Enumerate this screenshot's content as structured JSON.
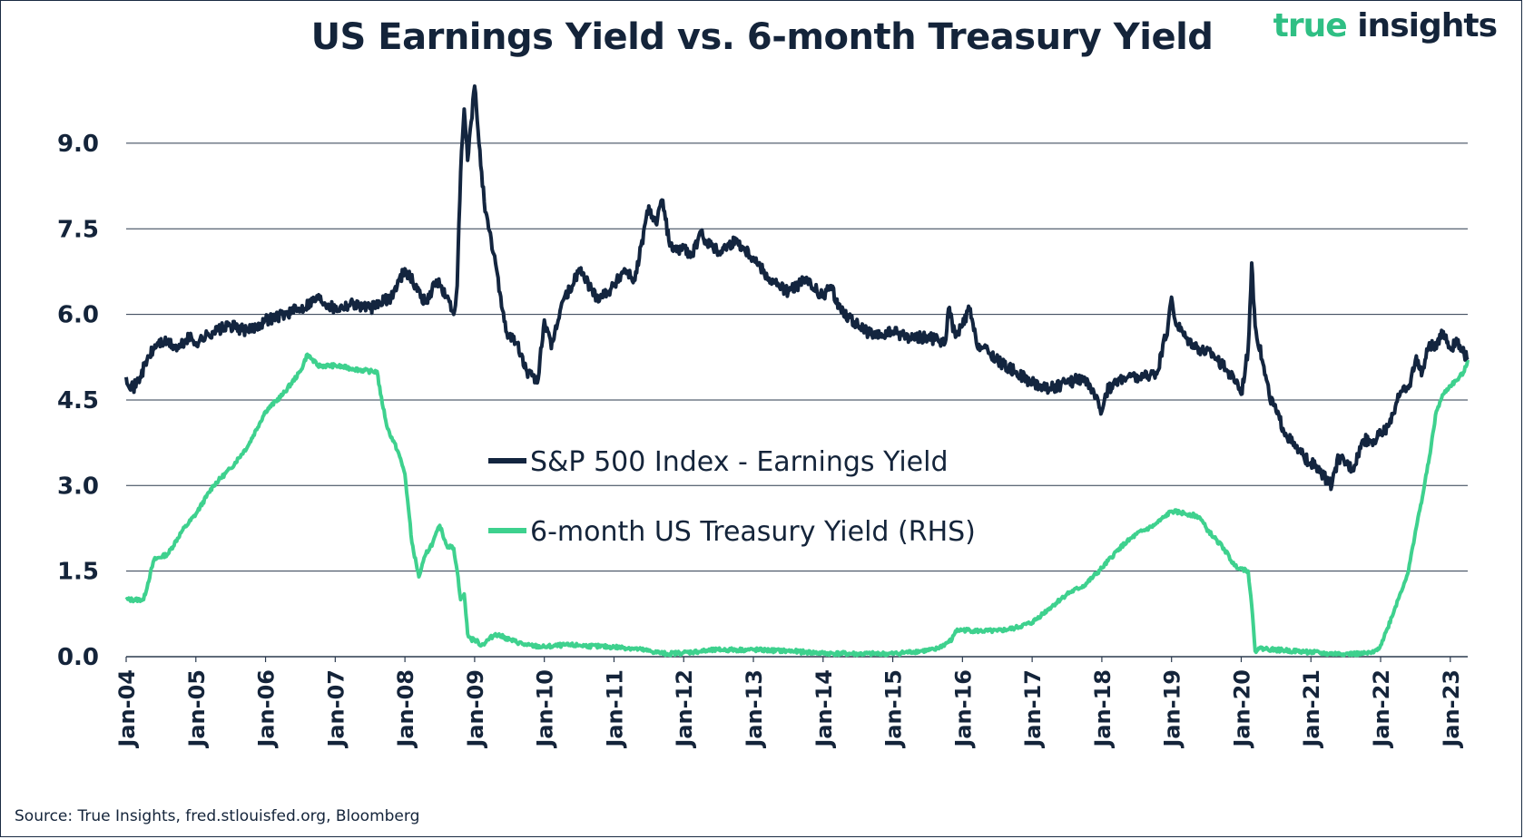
{
  "header": {
    "title": "US Earnings Yield vs. 6-month Treasury Yield",
    "brand_word1": "true",
    "brand_word2": "insights"
  },
  "footer": {
    "source": "Source: True Insights, fred.stlouisfed.org, Bloomberg"
  },
  "colors": {
    "earnings": "#13253f",
    "treasury": "#3ed18e",
    "grid": "#2b3a4e"
  },
  "chart_data": {
    "type": "line",
    "title": "US Earnings Yield vs. 6-month Treasury Yield",
    "xlabel": "",
    "ylabel": "",
    "x_range": [
      2004.0,
      2023.25
    ],
    "ylim": [
      0,
      10
    ],
    "yticks": [
      0.0,
      1.5,
      3.0,
      4.5,
      6.0,
      7.5,
      9.0
    ],
    "ytick_labels": [
      "0.0",
      "1.5",
      "3.0",
      "4.5",
      "6.0",
      "7.5",
      "9.0"
    ],
    "xticks": [
      2004,
      2005,
      2006,
      2007,
      2008,
      2009,
      2010,
      2011,
      2012,
      2013,
      2014,
      2015,
      2016,
      2017,
      2018,
      2019,
      2020,
      2021,
      2022,
      2023
    ],
    "xtick_labels": [
      "Jan-04",
      "Jan-05",
      "Jan-06",
      "Jan-07",
      "Jan-08",
      "Jan-09",
      "Jan-10",
      "Jan-11",
      "Jan-12",
      "Jan-13",
      "Jan-14",
      "Jan-15",
      "Jan-16",
      "Jan-17",
      "Jan-18",
      "Jan-19",
      "Jan-20",
      "Jan-21",
      "Jan-22",
      "Jan-23"
    ],
    "grid": true,
    "legend_position": "center",
    "series": [
      {
        "name": "S&P 500 Index - Earnings Yield",
        "color": "#13253f",
        "x": [
          2004.0,
          2004.1,
          2004.2,
          2004.3,
          2004.45,
          2004.6,
          2004.75,
          2004.9,
          2005.0,
          2005.25,
          2005.5,
          2005.75,
          2006.0,
          2006.25,
          2006.5,
          2006.75,
          2007.0,
          2007.25,
          2007.5,
          2007.65,
          2007.8,
          2008.0,
          2008.15,
          2008.3,
          2008.45,
          2008.6,
          2008.7,
          2008.75,
          2008.8,
          2008.85,
          2008.9,
          2009.0,
          2009.1,
          2009.15,
          2009.2,
          2009.3,
          2009.45,
          2009.6,
          2009.75,
          2009.9,
          2010.0,
          2010.1,
          2010.25,
          2010.4,
          2010.5,
          2010.6,
          2010.75,
          2010.9,
          2011.0,
          2011.15,
          2011.3,
          2011.5,
          2011.6,
          2011.7,
          2011.8,
          2011.9,
          2012.0,
          2012.1,
          2012.25,
          2012.4,
          2012.5,
          2012.75,
          2013.0,
          2013.25,
          2013.5,
          2013.75,
          2014.0,
          2014.1,
          2014.25,
          2014.5,
          2014.75,
          2015.0,
          2015.25,
          2015.5,
          2015.75,
          2015.8,
          2015.9,
          2016.0,
          2016.1,
          2016.2,
          2016.4,
          2016.6,
          2016.75,
          2017.0,
          2017.25,
          2017.5,
          2017.75,
          2018.0,
          2018.05,
          2018.1,
          2018.3,
          2018.6,
          2018.8,
          2018.95,
          2019.0,
          2019.05,
          2019.2,
          2019.4,
          2019.6,
          2019.8,
          2019.95,
          2020.0,
          2020.1,
          2020.15,
          2020.2,
          2020.3,
          2020.4,
          2020.5,
          2020.6,
          2020.75,
          2020.9,
          2021.0,
          2021.15,
          2021.3,
          2021.4,
          2021.5,
          2021.6,
          2021.75,
          2021.9,
          2022.0,
          2022.15,
          2022.25,
          2022.4,
          2022.5,
          2022.6,
          2022.7,
          2022.8,
          2022.9,
          2023.0,
          2023.1,
          2023.2,
          2023.25
        ],
        "values": [
          4.9,
          4.7,
          4.9,
          5.2,
          5.5,
          5.5,
          5.4,
          5.6,
          5.5,
          5.7,
          5.8,
          5.7,
          5.9,
          6.0,
          6.1,
          6.3,
          6.1,
          6.2,
          6.1,
          6.2,
          6.3,
          6.8,
          6.5,
          6.2,
          6.6,
          6.3,
          6.0,
          6.5,
          8.5,
          9.6,
          8.7,
          10.0,
          8.5,
          7.8,
          7.5,
          6.9,
          5.7,
          5.5,
          5.0,
          4.8,
          5.9,
          5.4,
          6.2,
          6.5,
          6.8,
          6.6,
          6.3,
          6.4,
          6.5,
          6.8,
          6.6,
          7.9,
          7.6,
          8.0,
          7.2,
          7.1,
          7.2,
          7.0,
          7.4,
          7.2,
          7.1,
          7.3,
          7.0,
          6.6,
          6.4,
          6.6,
          6.3,
          6.5,
          6.1,
          5.8,
          5.6,
          5.7,
          5.6,
          5.6,
          5.5,
          6.1,
          5.6,
          5.8,
          6.1,
          5.5,
          5.3,
          5.1,
          5.0,
          4.8,
          4.7,
          4.8,
          4.9,
          4.3,
          4.6,
          4.7,
          4.9,
          4.9,
          5.0,
          5.8,
          6.3,
          5.9,
          5.6,
          5.4,
          5.3,
          5.0,
          4.8,
          4.6,
          5.4,
          6.9,
          5.8,
          5.2,
          4.6,
          4.3,
          4.0,
          3.7,
          3.5,
          3.4,
          3.2,
          3.0,
          3.5,
          3.4,
          3.3,
          3.8,
          3.8,
          3.9,
          4.1,
          4.6,
          4.7,
          5.2,
          5.0,
          5.5,
          5.4,
          5.7,
          5.4,
          5.5,
          5.3,
          5.25
        ],
        "noise": 0.1
      },
      {
        "name": "6-month US Treasury Yield (RHS)",
        "color": "#3ed18e",
        "x": [
          2004.0,
          2004.25,
          2004.4,
          2004.6,
          2004.8,
          2005.0,
          2005.25,
          2005.5,
          2005.75,
          2006.0,
          2006.25,
          2006.5,
          2006.6,
          2006.75,
          2007.0,
          2007.25,
          2007.5,
          2007.6,
          2007.65,
          2007.75,
          2007.9,
          2008.0,
          2008.05,
          2008.1,
          2008.2,
          2008.3,
          2008.4,
          2008.5,
          2008.6,
          2008.7,
          2008.75,
          2008.8,
          2008.85,
          2008.9,
          2008.95,
          2009.0,
          2009.1,
          2009.3,
          2009.5,
          2009.75,
          2010.0,
          2010.25,
          2010.5,
          2010.75,
          2011.0,
          2011.25,
          2011.5,
          2011.75,
          2012.0,
          2012.5,
          2013.0,
          2013.5,
          2014.0,
          2014.5,
          2015.0,
          2015.4,
          2015.6,
          2015.75,
          2015.85,
          2015.9,
          2016.0,
          2016.25,
          2016.5,
          2016.75,
          2017.0,
          2017.25,
          2017.5,
          2017.75,
          2018.0,
          2018.25,
          2018.5,
          2018.75,
          2018.9,
          2019.0,
          2019.25,
          2019.4,
          2019.5,
          2019.6,
          2019.75,
          2019.9,
          2020.0,
          2020.1,
          2020.15,
          2020.2,
          2020.25,
          2020.5,
          2020.75,
          2021.0,
          2021.25,
          2021.5,
          2021.75,
          2021.9,
          2022.0,
          2022.1,
          2022.25,
          2022.4,
          2022.5,
          2022.6,
          2022.7,
          2022.8,
          2022.9,
          2023.0,
          2023.1,
          2023.2,
          2023.25
        ],
        "values": [
          1.0,
          1.0,
          1.7,
          1.8,
          2.2,
          2.5,
          3.0,
          3.3,
          3.7,
          4.3,
          4.6,
          5.0,
          5.3,
          5.1,
          5.1,
          5.05,
          5.0,
          5.0,
          4.6,
          4.0,
          3.6,
          3.2,
          2.6,
          2.0,
          1.4,
          1.8,
          2.0,
          2.3,
          1.95,
          1.9,
          1.5,
          1.0,
          1.1,
          0.4,
          0.3,
          0.3,
          0.2,
          0.4,
          0.3,
          0.2,
          0.17,
          0.2,
          0.2,
          0.18,
          0.17,
          0.15,
          0.1,
          0.05,
          0.07,
          0.12,
          0.12,
          0.1,
          0.06,
          0.05,
          0.05,
          0.1,
          0.12,
          0.22,
          0.3,
          0.45,
          0.47,
          0.45,
          0.45,
          0.5,
          0.6,
          0.85,
          1.1,
          1.25,
          1.55,
          1.9,
          2.15,
          2.3,
          2.45,
          2.55,
          2.5,
          2.45,
          2.25,
          2.1,
          1.9,
          1.6,
          1.55,
          1.5,
          0.9,
          0.1,
          0.15,
          0.12,
          0.1,
          0.08,
          0.05,
          0.05,
          0.05,
          0.07,
          0.2,
          0.5,
          1.0,
          1.5,
          2.2,
          2.8,
          3.5,
          4.3,
          4.6,
          4.75,
          4.85,
          5.0,
          5.2
        ],
        "noise": 0.035
      }
    ]
  }
}
